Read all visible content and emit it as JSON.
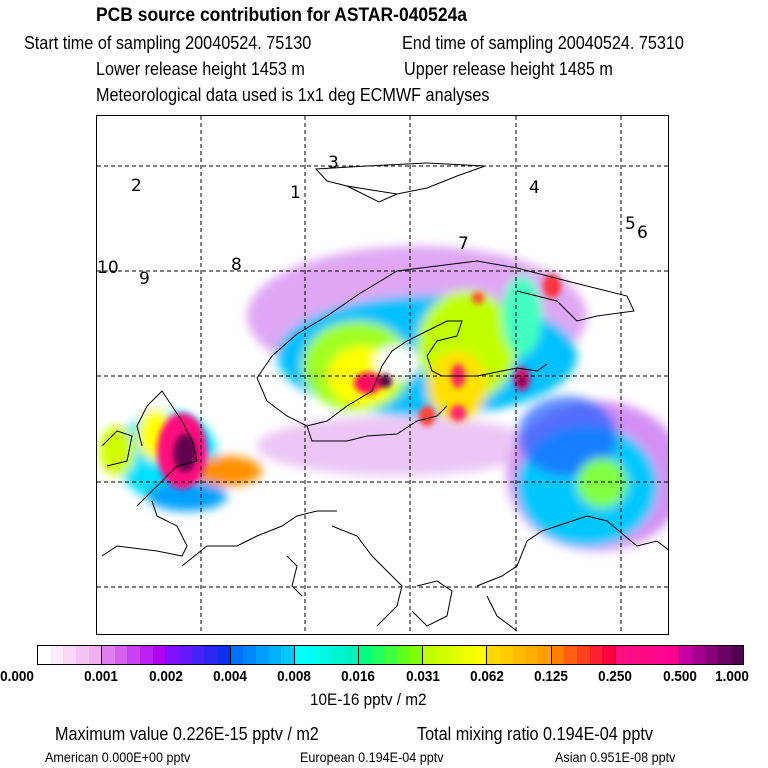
{
  "header": {
    "title": "PCB source contribution for ASTAR-040524a",
    "start_time": "Start time of sampling 20040524. 75130",
    "end_time": "End time of sampling 20040524. 75310",
    "lower_height": "Lower release height 1453 m",
    "upper_height": "Upper release height 1485 m",
    "met_data": "Meteorological data used is 1x1 deg ECMWF analyses"
  },
  "map": {
    "trajectory_labels": [
      "1",
      "2",
      "3",
      "4",
      "5",
      "6",
      "7",
      "8",
      "9",
      "10"
    ]
  },
  "colorbar": {
    "ticks": [
      "0.000",
      "0.001",
      "0.002",
      "0.004",
      "0.008",
      "0.016",
      "0.031",
      "0.062",
      "0.125",
      "0.250",
      "0.500",
      "1.000"
    ],
    "unit": "10E-16 pptv / m2",
    "segments": [
      [
        "#ffffff",
        "#f0b0f0"
      ],
      [
        "#e080f0",
        "#b000f0"
      ],
      [
        "#8010ff",
        "#1030f0"
      ],
      [
        "#0070ff",
        "#00c8ff"
      ],
      [
        "#00ffff",
        "#00f0c0"
      ],
      [
        "#00ff80",
        "#80ff00"
      ],
      [
        "#c0ff00",
        "#ffff00"
      ],
      [
        "#ffd800",
        "#ffa000"
      ],
      [
        "#ff8000",
        "#ff0040"
      ],
      [
        "#ff1080",
        "#ff0090"
      ],
      [
        "#c000a0",
        "#500050"
      ]
    ]
  },
  "footer": {
    "max_value": "Maximum value  0.226E-15 pptv / m2",
    "total_mixing": "Total mixing ratio  0.194E-04 pptv",
    "american": "American  0.000E+00 pptv",
    "european": "European  0.194E-04 pptv",
    "asian": "Asian  0.951E-08 pptv"
  }
}
